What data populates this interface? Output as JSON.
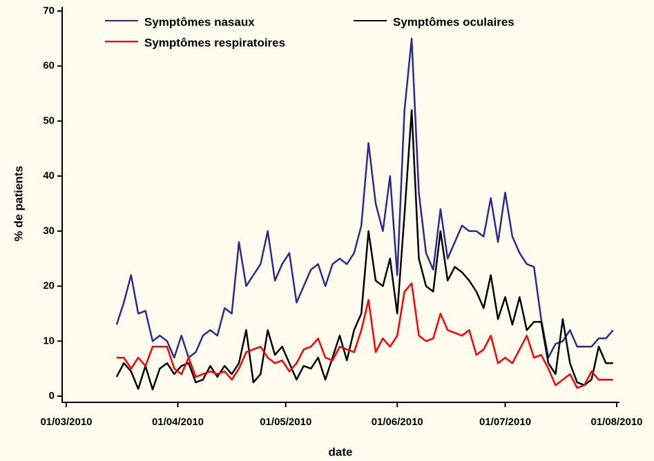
{
  "chart_data": {
    "type": "line",
    "xlabel": "date",
    "ylabel": "% de patients",
    "x": [
      "2010-03-15",
      "2010-03-17",
      "2010-03-19",
      "2010-03-21",
      "2010-03-23",
      "2010-03-25",
      "2010-03-27",
      "2010-03-29",
      "2010-03-31",
      "2010-04-02",
      "2010-04-04",
      "2010-04-06",
      "2010-04-08",
      "2010-04-10",
      "2010-04-12",
      "2010-04-14",
      "2010-04-16",
      "2010-04-18",
      "2010-04-20",
      "2010-04-22",
      "2010-04-24",
      "2010-04-26",
      "2010-04-28",
      "2010-04-30",
      "2010-05-02",
      "2010-05-04",
      "2010-05-06",
      "2010-05-08",
      "2010-05-10",
      "2010-05-12",
      "2010-05-14",
      "2010-05-16",
      "2010-05-18",
      "2010-05-20",
      "2010-05-22",
      "2010-05-24",
      "2010-05-26",
      "2010-05-28",
      "2010-05-30",
      "2010-06-01",
      "2010-06-03",
      "2010-06-05",
      "2010-06-07",
      "2010-06-09",
      "2010-06-11",
      "2010-06-13",
      "2010-06-15",
      "2010-06-17",
      "2010-06-19",
      "2010-06-21",
      "2010-06-23",
      "2010-06-25",
      "2010-06-27",
      "2010-06-29",
      "2010-07-01",
      "2010-07-03",
      "2010-07-05",
      "2010-07-07",
      "2010-07-09",
      "2010-07-11",
      "2010-07-13",
      "2010-07-15",
      "2010-07-17",
      "2010-07-19",
      "2010-07-21",
      "2010-07-23",
      "2010-07-25",
      "2010-07-27",
      "2010-07-29",
      "2010-07-31"
    ],
    "series": [
      {
        "name": "Symptômes nasaux",
        "color": "#2b2b8f",
        "values": [
          13,
          17,
          22,
          15,
          15.5,
          10,
          11,
          10,
          7,
          11,
          7,
          8,
          11,
          12,
          11,
          16,
          15,
          28,
          20,
          22,
          24,
          30,
          21,
          24,
          26,
          17,
          20,
          23,
          24,
          20,
          24,
          25,
          24,
          26,
          31,
          46,
          35,
          30,
          40,
          22,
          52,
          65,
          37,
          26,
          23,
          34,
          25,
          28,
          31,
          30,
          30,
          29,
          36,
          28,
          37,
          29,
          26,
          24,
          23.5,
          14,
          7,
          9.5,
          10,
          12,
          9,
          9,
          9,
          10.5,
          10.5,
          12
        ]
      },
      {
        "name": "Symptômes oculaires",
        "color": "#000000",
        "values": [
          3.5,
          6,
          4.5,
          1.3,
          5.5,
          1.2,
          5,
          6,
          4,
          5.5,
          6,
          2.5,
          3,
          5.5,
          3.5,
          5.5,
          4,
          6,
          12,
          2.5,
          4,
          12,
          7.5,
          9,
          6,
          3,
          5.5,
          5,
          7,
          3,
          7,
          11,
          6.5,
          12,
          15,
          30,
          21,
          20,
          25,
          15,
          33,
          52,
          25,
          20,
          19,
          30,
          21,
          23.5,
          22.5,
          21,
          19,
          16,
          22,
          14,
          18,
          13,
          18,
          12,
          13.5,
          13.5,
          6,
          4,
          14,
          6,
          2.5,
          2,
          3,
          9,
          6,
          6
        ]
      },
      {
        "name": "Symptômes respiratoires",
        "color": "#ff0000",
        "values": [
          7,
          7,
          5,
          7,
          5.5,
          9,
          9,
          9,
          5,
          4,
          7,
          3.5,
          4,
          4.5,
          4,
          4.5,
          3,
          5,
          8,
          8.5,
          9,
          7,
          6,
          6.5,
          4.5,
          6,
          8.5,
          9,
          10.5,
          7,
          6.5,
          9,
          8.5,
          8,
          12,
          17.5,
          8,
          10.5,
          9,
          11,
          19,
          20.5,
          11,
          10,
          10.5,
          15,
          12,
          11.5,
          11,
          12,
          7.5,
          8.5,
          11,
          6,
          7,
          6,
          8.5,
          11,
          7,
          7.5,
          5,
          2,
          3,
          4,
          1.5,
          2,
          4.5,
          3,
          3,
          3
        ]
      }
    ],
    "xlim": [
      "2010-03-01",
      "2010-08-01"
    ],
    "xticks": [
      {
        "value": "2010-03-01",
        "label": "01/03/2010"
      },
      {
        "value": "2010-04-01",
        "label": "01/04/2010"
      },
      {
        "value": "2010-05-01",
        "label": "01/05/2010"
      },
      {
        "value": "2010-06-01",
        "label": "01/06/2010"
      },
      {
        "value": "2010-07-01",
        "label": "01/07/2010"
      },
      {
        "value": "2010-08-01",
        "label": "01/08/2010"
      }
    ],
    "ylim": [
      0,
      70
    ],
    "yticks": [
      0,
      10,
      20,
      30,
      40,
      50,
      60,
      70
    ]
  }
}
